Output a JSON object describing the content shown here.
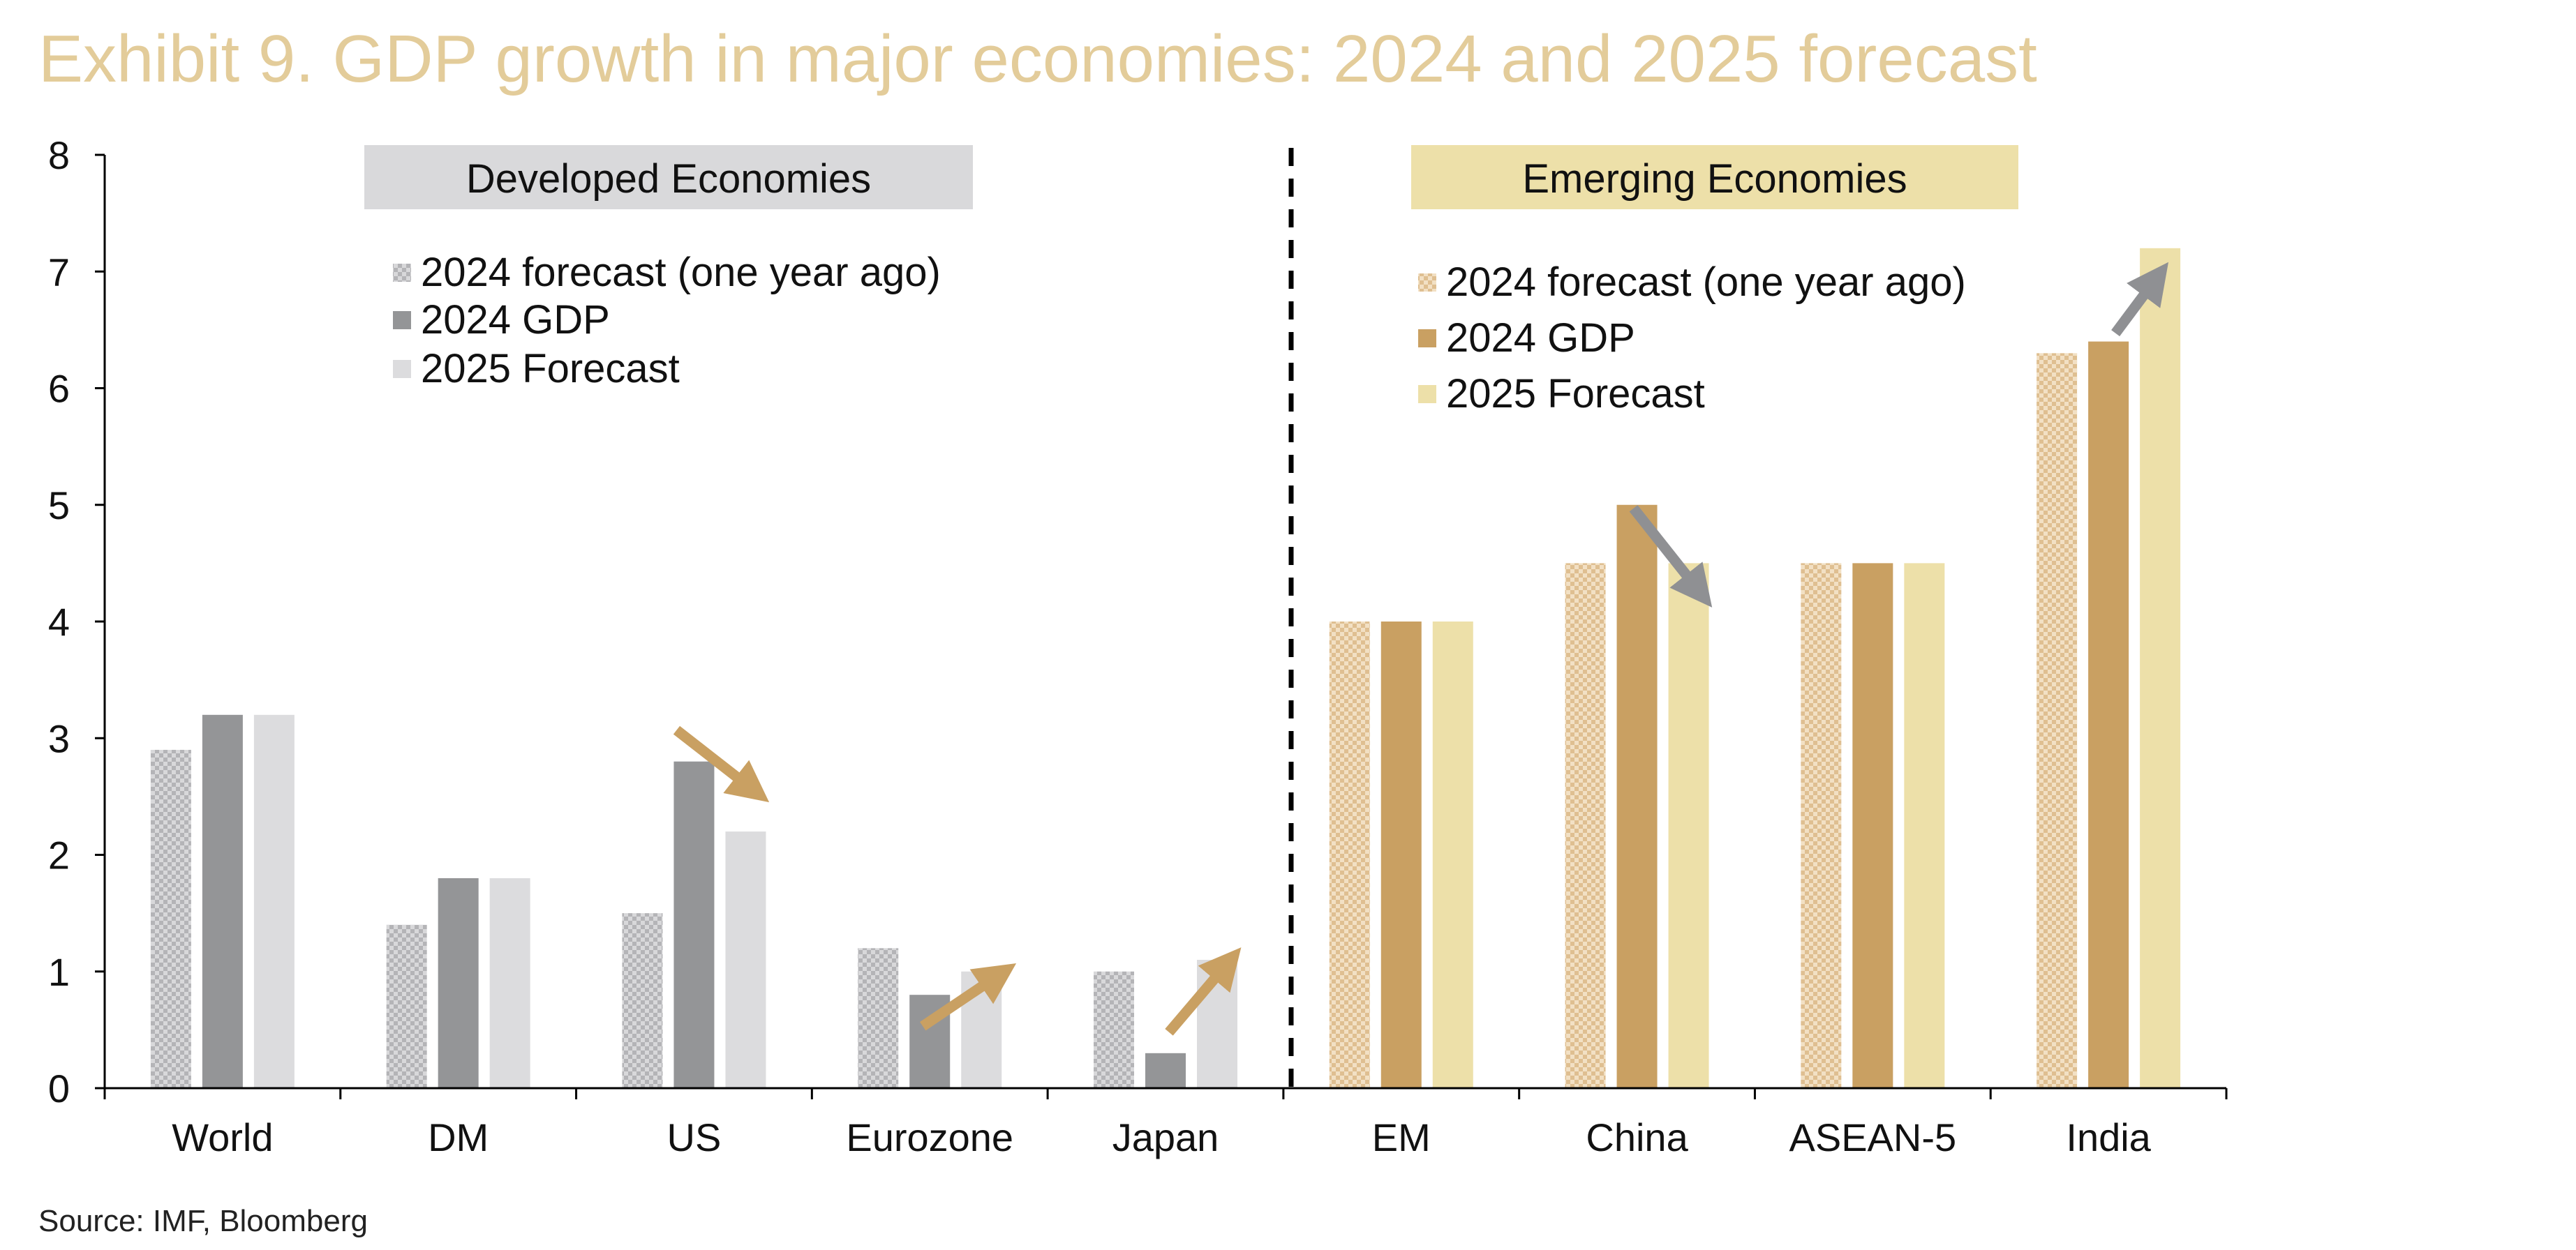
{
  "title": "Exhibit 9. GDP growth in major economies: 2024 and 2025 forecast",
  "source": "Source: IMF, Bloomberg",
  "colors": {
    "title": "#e3cc9a",
    "developed": {
      "forecast_2024": "#c9c9cc",
      "gdp_2024": "#949597",
      "forecast_2025": "#dcdcde",
      "header_bg": "#d9d9db"
    },
    "emerging": {
      "forecast_2024": "#e9d0a8",
      "gdp_2024": "#c9a062",
      "forecast_2025": "#ede0a9",
      "header_bg": "#ede0a9"
    },
    "arrow_gold": "#c9a062",
    "arrow_gray": "#8f9093"
  },
  "chart_data": {
    "type": "bar",
    "title": "Exhibit 9. GDP growth in major economies: 2024 and 2025 forecast",
    "categories": [
      "World",
      "DM",
      "US",
      "Eurozone",
      "Japan",
      "EM",
      "China",
      "ASEAN-5",
      "India"
    ],
    "series": [
      {
        "name": "2024 forecast (one year ago)",
        "values": [
          2.9,
          1.4,
          1.5,
          1.2,
          1.0,
          4.0,
          4.5,
          4.5,
          6.3
        ]
      },
      {
        "name": "2024 GDP",
        "values": [
          3.2,
          1.8,
          2.8,
          0.8,
          0.3,
          4.0,
          5.0,
          4.5,
          6.4
        ]
      },
      {
        "name": "2025 Forecast",
        "values": [
          3.2,
          1.8,
          2.2,
          1.0,
          1.1,
          4.0,
          4.5,
          4.5,
          7.2
        ]
      }
    ],
    "ylim": [
      0,
      8
    ],
    "yticks": [
      "0",
      "1",
      "2",
      "3",
      "4",
      "5",
      "6",
      "7",
      "8"
    ],
    "xlabel": "",
    "ylabel": "",
    "groups": [
      {
        "name": "Developed Economies",
        "categories": [
          "World",
          "DM",
          "US",
          "Eurozone",
          "Japan"
        ]
      },
      {
        "name": "Emerging Economies",
        "categories": [
          "EM",
          "China",
          "ASEAN-5",
          "India"
        ]
      }
    ],
    "legend": {
      "developed": [
        "2024 forecast (one year ago)",
        "2024 GDP",
        "2025 Forecast"
      ],
      "emerging": [
        "2024 forecast (one year ago)",
        "2024 GDP",
        "2025 Forecast"
      ]
    },
    "annotations": [
      {
        "category": "US",
        "direction": "down",
        "color": "gold"
      },
      {
        "category": "Eurozone",
        "direction": "up",
        "color": "gold"
      },
      {
        "category": "Japan",
        "direction": "up",
        "color": "gold"
      },
      {
        "category": "China",
        "direction": "down",
        "color": "gray"
      },
      {
        "category": "India",
        "direction": "up",
        "color": "gray"
      }
    ]
  }
}
